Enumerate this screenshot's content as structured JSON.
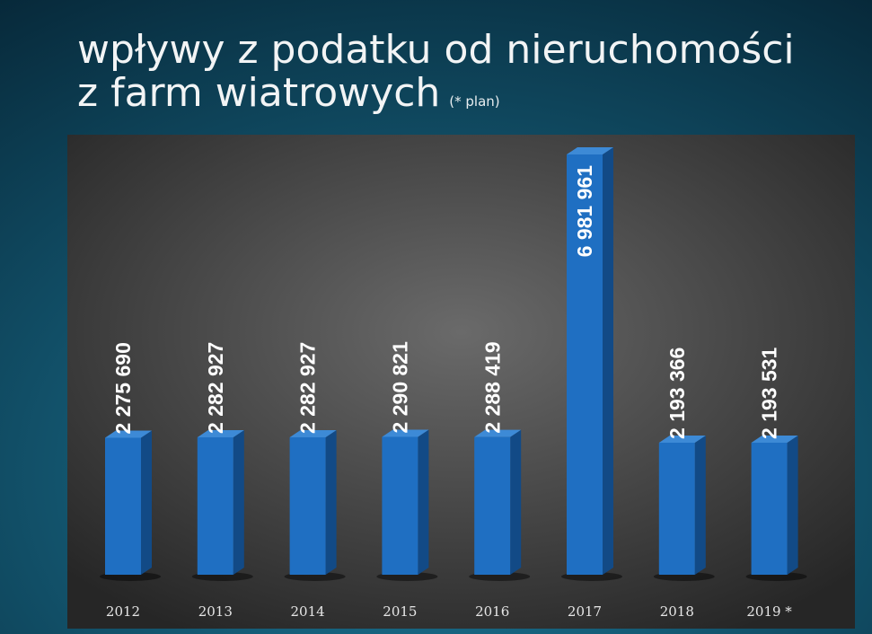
{
  "chart_data": {
    "type": "bar",
    "title_lines": [
      "wpływy z podatku od nieruchomości",
      "z farm wiatrowych"
    ],
    "note": "(* plan)",
    "categories": [
      "2012",
      "2013",
      "2014",
      "2015",
      "2016",
      "2017",
      "2018",
      "2019 *"
    ],
    "values": [
      2275690,
      2282927,
      2282927,
      2290821,
      2288419,
      6981961,
      2193366,
      2193531
    ],
    "value_labels": [
      "2 275 690",
      "2 282 927",
      "2 282 927",
      "2 290 821",
      "2 288 419",
      "6 981 961",
      "2 193 366",
      "2 193 531"
    ],
    "color": "#1f6fc2"
  }
}
